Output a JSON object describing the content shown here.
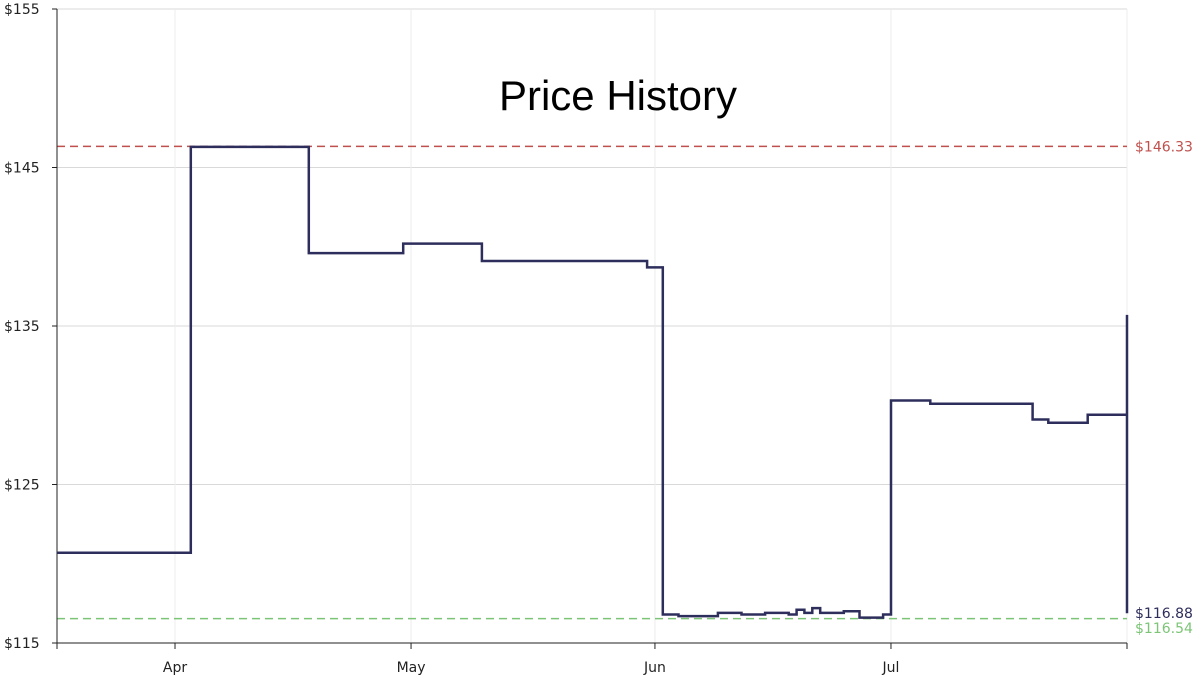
{
  "chart_data": {
    "type": "line",
    "title": "Price History",
    "xlabel": "",
    "ylabel": "",
    "x_range": [
      "2024-03-17",
      "2024-07-31"
    ],
    "ylim": [
      115,
      155
    ],
    "y_ticks": [
      115,
      125,
      135,
      145,
      155
    ],
    "y_tick_labels": [
      "$115",
      "$125",
      "$135",
      "$145",
      "$155"
    ],
    "x_ticks": [
      "2024-04-01",
      "2024-05-01",
      "2024-06-01",
      "2024-07-01"
    ],
    "x_tick_labels": [
      "Apr",
      "May",
      "Jun",
      "Jul"
    ],
    "grid": true,
    "step": true,
    "series": [
      {
        "color": "#2e2e5c",
        "points": [
          [
            "2024-03-17",
            120.7
          ],
          [
            "2024-04-03",
            146.3
          ],
          [
            "2024-04-18",
            139.6
          ],
          [
            "2024-04-30",
            140.2
          ],
          [
            "2024-05-10",
            139.1
          ],
          [
            "2024-05-31",
            138.7
          ],
          [
            "2024-06-02",
            116.8
          ],
          [
            "2024-06-04",
            116.7
          ],
          [
            "2024-06-09",
            116.9
          ],
          [
            "2024-06-12",
            116.8
          ],
          [
            "2024-06-15",
            116.9
          ],
          [
            "2024-06-18",
            116.8
          ],
          [
            "2024-06-19",
            117.1
          ],
          [
            "2024-06-20",
            116.9
          ],
          [
            "2024-06-21",
            117.2
          ],
          [
            "2024-06-22",
            116.9
          ],
          [
            "2024-06-25",
            117.0
          ],
          [
            "2024-06-27",
            116.6
          ],
          [
            "2024-06-30",
            116.8
          ],
          [
            "2024-07-01",
            130.3
          ],
          [
            "2024-07-06",
            130.1
          ],
          [
            "2024-07-19",
            129.1
          ],
          [
            "2024-07-21",
            128.9
          ],
          [
            "2024-07-26",
            129.4
          ],
          [
            "2024-07-31",
            135.7
          ],
          [
            "2024-07-31",
            116.88
          ]
        ]
      }
    ],
    "reference_lines": [
      {
        "value": 146.33,
        "label": "$146.33",
        "color": "#c0504d",
        "style": "dashed"
      },
      {
        "value": 116.54,
        "label": "$116.54",
        "color": "#7cc576",
        "style": "dashed"
      }
    ],
    "end_label": {
      "value": 116.88,
      "label": "$116.88",
      "color": "#2e2e5c"
    }
  }
}
